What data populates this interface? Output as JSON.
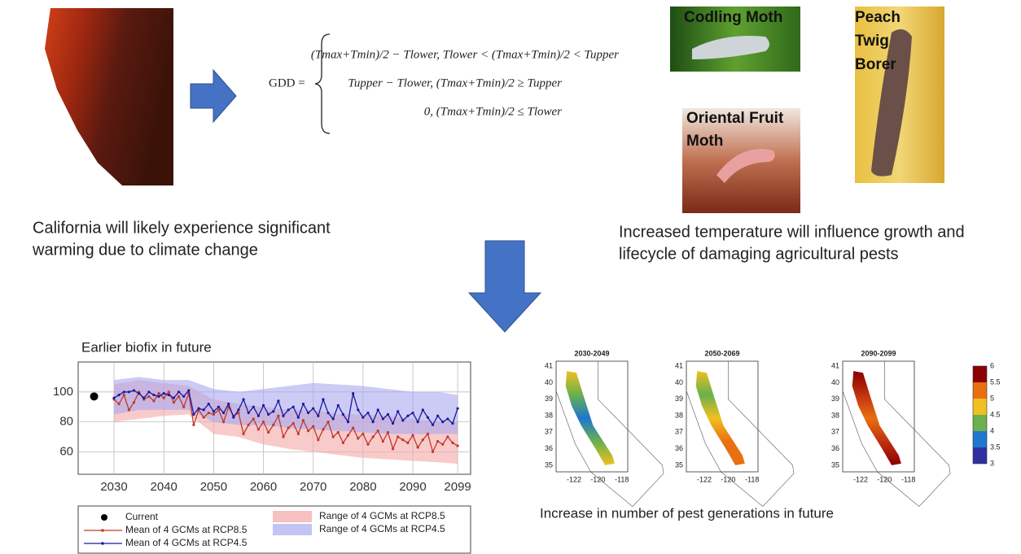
{
  "left_caption": [
    "California will likely experience significant",
    "warming due to climate change"
  ],
  "formula": {
    "lhs": "GDD =",
    "cases": [
      "(Tmax+Tmin)/2 − Tlower,  Tlower < (Tmax+Tmin)/2 < Tupper",
      "Tupper − Tlower,  (Tmax+Tmin)/2 ≥ Tupper",
      "0,  (Tmax+Tmin)/2 ≤ Tlower"
    ]
  },
  "photos": [
    {
      "label": [
        "Codling Moth"
      ]
    },
    {
      "label": [
        "Peach",
        "Twig",
        "Borer"
      ]
    },
    {
      "label": [
        "Oriental Fruit",
        "Moth"
      ]
    }
  ],
  "right_caption": [
    "Increased temperature will influence growth and",
    "lifecycle of damaging agricultural pests"
  ],
  "chart_data": {
    "type": "line",
    "title": "Earlier biofix in future",
    "x": [
      2030,
      2031,
      2032,
      2033,
      2034,
      2035,
      2036,
      2037,
      2038,
      2039,
      2040,
      2041,
      2042,
      2043,
      2044,
      2045,
      2046,
      2047,
      2048,
      2049,
      2050,
      2051,
      2052,
      2053,
      2054,
      2055,
      2056,
      2057,
      2058,
      2059,
      2060,
      2061,
      2062,
      2063,
      2064,
      2065,
      2066,
      2067,
      2068,
      2069,
      2070,
      2071,
      2072,
      2073,
      2074,
      2075,
      2076,
      2077,
      2078,
      2079,
      2080,
      2081,
      2082,
      2083,
      2084,
      2085,
      2086,
      2087,
      2088,
      2089,
      2090,
      2091,
      2092,
      2093,
      2094,
      2095,
      2096,
      2097,
      2098,
      2099
    ],
    "series": [
      {
        "name": "Mean of 4 GCMs at RCP8.5",
        "color": "#c0392b",
        "values": [
          95,
          92,
          98,
          88,
          93,
          100,
          95,
          97,
          94,
          99,
          96,
          100,
          93,
          97,
          90,
          99,
          78,
          88,
          83,
          86,
          85,
          88,
          80,
          90,
          84,
          86,
          72,
          78,
          82,
          75,
          80,
          73,
          78,
          84,
          70,
          76,
          79,
          72,
          81,
          74,
          77,
          68,
          75,
          80,
          70,
          73,
          66,
          71,
          76,
          69,
          72,
          65,
          70,
          74,
          67,
          73,
          62,
          70,
          68,
          66,
          71,
          63,
          68,
          72,
          60,
          67,
          65,
          70,
          66,
          64
        ]
      },
      {
        "name": "Mean of 4 GCMs at RCP4.5",
        "color": "#1a1a9c",
        "values": [
          96,
          98,
          100,
          100,
          101,
          99,
          96,
          100,
          98,
          97,
          99,
          98,
          96,
          100,
          97,
          101,
          85,
          89,
          88,
          92,
          87,
          90,
          86,
          92,
          83,
          88,
          95,
          86,
          90,
          84,
          91,
          85,
          87,
          94,
          84,
          88,
          90,
          83,
          92,
          86,
          89,
          84,
          95,
          86,
          82,
          91,
          85,
          80,
          99,
          88,
          83,
          86,
          80,
          88,
          82,
          85,
          79,
          87,
          81,
          84,
          86,
          80,
          88,
          83,
          78,
          84,
          80,
          82,
          79,
          89
        ]
      }
    ],
    "bands": [
      {
        "name": "Range of 4 GCMs at RCP8.5",
        "color": "#f4a6a6",
        "x": [
          2030,
          2035,
          2040,
          2045,
          2050,
          2055,
          2060,
          2065,
          2070,
          2075,
          2080,
          2085,
          2090,
          2095,
          2099
        ],
        "lower": [
          80,
          82,
          84,
          85,
          72,
          70,
          65,
          62,
          60,
          58,
          56,
          55,
          54,
          53,
          52
        ],
        "upper": [
          105,
          108,
          106,
          104,
          95,
          92,
          90,
          88,
          88,
          85,
          85,
          84,
          82,
          80,
          80
        ]
      },
      {
        "name": "Range of 4 GCMs at RCP4.5",
        "color": "#a9a9f0",
        "x": [
          2030,
          2035,
          2040,
          2045,
          2050,
          2055,
          2060,
          2065,
          2070,
          2075,
          2080,
          2085,
          2090,
          2095,
          2099
        ],
        "lower": [
          85,
          88,
          88,
          88,
          80,
          78,
          78,
          76,
          75,
          74,
          73,
          72,
          72,
          72,
          72
        ],
        "upper": [
          108,
          110,
          108,
          108,
          102,
          100,
          102,
          104,
          106,
          105,
          104,
          102,
          100,
          100,
          98
        ]
      }
    ],
    "current": {
      "name": "Current",
      "x": 2026,
      "value": 97
    },
    "xlim": [
      2022.8,
      2101.6
    ],
    "xticks": [
      2030,
      2040,
      2050,
      2060,
      2070,
      2080,
      2090,
      2099
    ],
    "ylim": [
      45,
      120
    ],
    "yticks": [
      60,
      80,
      100
    ],
    "grid": true
  },
  "maps": {
    "panels": [
      {
        "title": "2030-2049",
        "colors": [
          "#f0c020",
          "#6ab04c",
          "#1f77d0",
          "#6ab04c",
          "#f0c020"
        ]
      },
      {
        "title": "2050-2069",
        "colors": [
          "#f0c020",
          "#6ab04c",
          "#f0c020",
          "#e87010",
          "#e87010"
        ]
      },
      {
        "title": "2090-2099",
        "colors": [
          "#8b0000",
          "#c03010",
          "#e87010",
          "#c03010",
          "#8b0000"
        ]
      }
    ],
    "xlim": [
      -123.5,
      -117.5
    ],
    "ylim": [
      34.6,
      41.3
    ],
    "xticks": [
      -122,
      -120,
      -118
    ],
    "yticks": [
      41,
      40,
      39,
      38,
      37,
      36,
      35
    ],
    "colorbar": {
      "lim": [
        3,
        6
      ],
      "ticks": [
        3,
        3.5,
        4,
        4.5,
        5,
        5.5,
        6
      ],
      "colors": [
        "#3030a0",
        "#1f77d0",
        "#6ab04c",
        "#f0c020",
        "#e87010",
        "#8b0000"
      ]
    },
    "caption": "Increase in number of pest generations in future"
  }
}
